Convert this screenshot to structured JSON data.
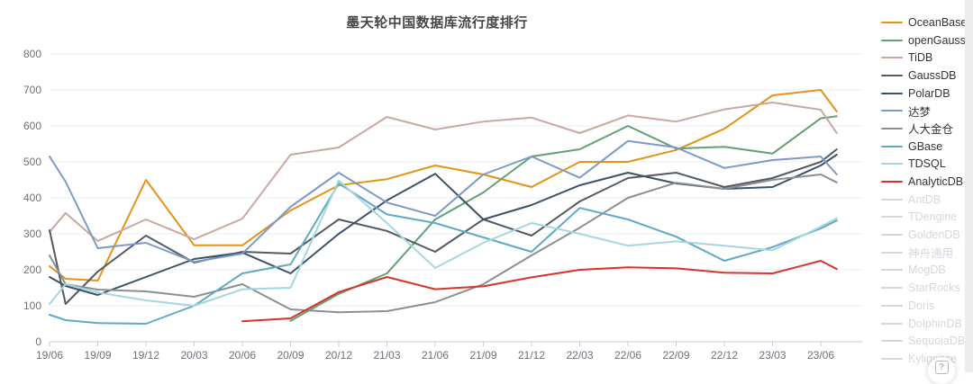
{
  "page": {
    "background": "#ffffff"
  },
  "chart_data": {
    "type": "line",
    "title": "墨天轮中国数据库流行度排行",
    "xlabel": "",
    "ylabel": "",
    "ylim": [
      0,
      800
    ],
    "y_ticks": [
      0,
      100,
      200,
      300,
      400,
      500,
      600,
      700,
      800
    ],
    "grid": true,
    "legend_position": "right",
    "x_tick_labels": [
      "19/06",
      "19/09",
      "19/12",
      "20/03",
      "20/06",
      "20/09",
      "20/12",
      "21/03",
      "21/06",
      "21/09",
      "21/12",
      "22/03",
      "22/06",
      "22/09",
      "22/12",
      "23/03",
      "23/06"
    ],
    "x_tick_months": [
      0,
      3,
      6,
      9,
      12,
      15,
      18,
      21,
      24,
      27,
      30,
      33,
      36,
      39,
      42,
      45,
      48
    ],
    "months_since_1906": [
      0,
      1,
      3,
      6,
      9,
      12,
      15,
      18,
      21,
      24,
      27,
      30,
      33,
      36,
      39,
      42,
      45,
      48,
      49
    ],
    "series": [
      {
        "name": "OceanBase",
        "color": "#e49317",
        "values": [
          210,
          175,
          170,
          450,
          268,
          268,
          365,
          435,
          452,
          490,
          465,
          430,
          500,
          500,
          533,
          592,
          685,
          700,
          640
        ]
      },
      {
        "name": "openGauss",
        "color": "#5fa173",
        "values": [
          null,
          null,
          null,
          null,
          null,
          null,
          58,
          133,
          190,
          340,
          415,
          515,
          535,
          600,
          537,
          542,
          523,
          621,
          627
        ]
      },
      {
        "name": "TiDB",
        "color": "#c8a8a1",
        "values": [
          305,
          358,
          280,
          340,
          285,
          342,
          520,
          540,
          625,
          590,
          612,
          623,
          580,
          629,
          612,
          646,
          665,
          645,
          580
        ]
      },
      {
        "name": "GaussDB",
        "color": "#545a61",
        "values": [
          310,
          105,
          195,
          295,
          220,
          250,
          245,
          340,
          308,
          250,
          340,
          295,
          390,
          455,
          470,
          430,
          455,
          500,
          535
        ]
      },
      {
        "name": "PolarDB",
        "color": "#3d5166",
        "values": [
          180,
          155,
          130,
          180,
          230,
          248,
          190,
          300,
          393,
          467,
          340,
          380,
          435,
          470,
          440,
          425,
          430,
          490,
          520
        ]
      },
      {
        "name": "达梦",
        "color": "#7d99c5",
        "values": [
          515,
          445,
          260,
          275,
          222,
          245,
          375,
          470,
          387,
          350,
          465,
          515,
          456,
          558,
          540,
          483,
          505,
          515,
          465
        ]
      },
      {
        "name": "人大金仓",
        "color": "#8b8f95",
        "values": [
          240,
          160,
          145,
          140,
          125,
          160,
          90,
          82,
          85,
          110,
          160,
          240,
          317,
          400,
          442,
          425,
          450,
          465,
          443
        ]
      },
      {
        "name": "GBase",
        "color": "#5ea9c4",
        "values": [
          75,
          60,
          52,
          50,
          100,
          190,
          215,
          440,
          354,
          330,
          290,
          250,
          372,
          340,
          292,
          225,
          263,
          315,
          337
        ]
      },
      {
        "name": "TDSQL",
        "color": "#a6d6dd",
        "values": [
          105,
          160,
          137,
          115,
          100,
          146,
          150,
          448,
          330,
          205,
          275,
          330,
          300,
          267,
          279,
          267,
          254,
          320,
          343
        ]
      },
      {
        "name": "AnalyticDB",
        "color": "#d8332b",
        "values": [
          null,
          null,
          null,
          null,
          null,
          57,
          65,
          138,
          180,
          146,
          154,
          179,
          200,
          207,
          204,
          192,
          190,
          225,
          202
        ]
      }
    ],
    "legend_disabled": [
      "AntDB",
      "TDengine",
      "GoldenDB",
      "神舟通用",
      "MogDB",
      "StarRocks",
      "Doris",
      "DolphinDB",
      "SequoiaDB",
      "Kyligence"
    ],
    "colors": {
      "grid_line": "#e8edf4",
      "axis_line": "#cccccc",
      "axis_label": "#6e7079",
      "title": "#464646",
      "legend_disabled": "#d4d7dc"
    }
  },
  "help_button": {
    "icon_glyph": "?"
  }
}
